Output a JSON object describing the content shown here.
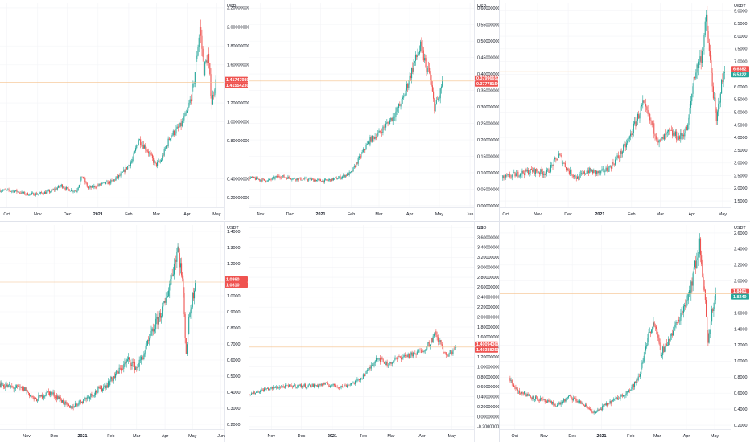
{
  "colors": {
    "up": "#26a69a",
    "down": "#ef5350",
    "price_line": "#f5c08a",
    "grid": "#f3f4f7",
    "axis_text": "#131722",
    "axis_line": "#e0e3eb",
    "badge_red": "#ef5350",
    "badge_green": "#26a69a",
    "badge_text": "#ffffff"
  },
  "chart_data": [
    {
      "type": "candlestick",
      "currency": "USD",
      "x_labels": [
        "Oct",
        "Nov",
        "Dec",
        "2021",
        "Feb",
        "Mar",
        "Apr",
        "May"
      ],
      "x_label_dates": [
        "2020-10-01",
        "2020-11-01",
        "2020-12-01",
        "2021-01-01",
        "2021-02-01",
        "2021-03-01",
        "2021-04-01",
        "2021-05-01"
      ],
      "x_range": [
        "2020-09-24",
        "2021-05-08"
      ],
      "y_ticks": [
        0.2,
        0.4,
        0.8,
        1.0,
        1.2,
        1.6,
        1.8,
        2.0,
        2.2
      ],
      "y_tick_labels": [
        "0.20000000",
        "0.40000000",
        "0.80000000",
        "1.00000000",
        "1.20000000",
        "1.60000000",
        "1.80000000",
        "2.00000000",
        "2.20000000"
      ],
      "ylim": [
        0.1,
        2.25
      ],
      "last_price": 1.4147,
      "last_price_labels": [
        "1.41747989",
        "1.41554230"
      ],
      "series": [
        {
          "date": "2020-09-24",
          "close": 0.28
        },
        {
          "date": "2020-10-10",
          "close": 0.27
        },
        {
          "date": "2020-10-20",
          "close": 0.24
        },
        {
          "date": "2020-11-01",
          "close": 0.24
        },
        {
          "date": "2020-11-15",
          "close": 0.27
        },
        {
          "date": "2020-11-25",
          "close": 0.33
        },
        {
          "date": "2020-12-01",
          "close": 0.29
        },
        {
          "date": "2020-12-10",
          "close": 0.27
        },
        {
          "date": "2020-12-16",
          "close": 0.43
        },
        {
          "date": "2020-12-22",
          "close": 0.3
        },
        {
          "date": "2021-01-01",
          "close": 0.33
        },
        {
          "date": "2021-01-15",
          "close": 0.37
        },
        {
          "date": "2021-01-25",
          "close": 0.45
        },
        {
          "date": "2021-02-05",
          "close": 0.6
        },
        {
          "date": "2021-02-11",
          "close": 0.82
        },
        {
          "date": "2021-02-20",
          "close": 0.7
        },
        {
          "date": "2021-02-28",
          "close": 0.55
        },
        {
          "date": "2021-03-05",
          "close": 0.58
        },
        {
          "date": "2021-03-15",
          "close": 0.85
        },
        {
          "date": "2021-03-25",
          "close": 0.95
        },
        {
          "date": "2021-04-01",
          "close": 1.1
        },
        {
          "date": "2021-04-07",
          "close": 1.35
        },
        {
          "date": "2021-04-14",
          "close": 2.0
        },
        {
          "date": "2021-04-18",
          "close": 1.55
        },
        {
          "date": "2021-04-22",
          "close": 1.7
        },
        {
          "date": "2021-04-26",
          "close": 1.2
        },
        {
          "date": "2021-04-30",
          "close": 1.45
        }
      ]
    },
    {
      "type": "candlestick",
      "currency": "USD",
      "x_labels": [
        "Nov",
        "Dec",
        "2021",
        "Feb",
        "Mar",
        "Apr",
        "May",
        "Jun"
      ],
      "x_label_dates": [
        "2020-11-01",
        "2020-12-01",
        "2021-01-01",
        "2021-02-01",
        "2021-03-01",
        "2021-04-01",
        "2021-05-01",
        "2021-06-01"
      ],
      "x_range": [
        "2020-10-21",
        "2021-06-05"
      ],
      "y_ticks": [
        0.0,
        0.05,
        0.1,
        0.15,
        0.2,
        0.25,
        0.3,
        0.35,
        0.4,
        0.45,
        0.5,
        0.55,
        0.6
      ],
      "y_tick_labels": [
        "0.00000000",
        "0.05000000",
        "0.10000000",
        "0.15000000",
        "0.20000000",
        "0.25000000",
        "0.30000000",
        "0.35000000",
        "0.40000000",
        "0.45000000",
        "0.50000000",
        "0.55000000",
        "0.60000000"
      ],
      "ylim": [
        -0.005,
        0.615
      ],
      "last_price": 0.3787,
      "last_price_labels": [
        "0.37996657",
        "0.37778154"
      ],
      "series": [
        {
          "date": "2020-10-21",
          "close": 0.085
        },
        {
          "date": "2020-10-31",
          "close": 0.08
        },
        {
          "date": "2020-11-08",
          "close": 0.075
        },
        {
          "date": "2020-11-20",
          "close": 0.09
        },
        {
          "date": "2020-12-05",
          "close": 0.082
        },
        {
          "date": "2020-12-20",
          "close": 0.08
        },
        {
          "date": "2021-01-05",
          "close": 0.075
        },
        {
          "date": "2021-01-20",
          "close": 0.085
        },
        {
          "date": "2021-02-01",
          "close": 0.1
        },
        {
          "date": "2021-02-10",
          "close": 0.15
        },
        {
          "date": "2021-02-20",
          "close": 0.2
        },
        {
          "date": "2021-03-01",
          "close": 0.22
        },
        {
          "date": "2021-03-15",
          "close": 0.27
        },
        {
          "date": "2021-03-25",
          "close": 0.32
        },
        {
          "date": "2021-04-05",
          "close": 0.43
        },
        {
          "date": "2021-04-12",
          "close": 0.48
        },
        {
          "date": "2021-04-17",
          "close": 0.43
        },
        {
          "date": "2021-04-21",
          "close": 0.4
        },
        {
          "date": "2021-04-26",
          "close": 0.3
        },
        {
          "date": "2021-05-01",
          "close": 0.33
        },
        {
          "date": "2021-05-04",
          "close": 0.38
        }
      ]
    },
    {
      "type": "candlestick",
      "currency": "USDT",
      "x_labels": [
        "Oct",
        "Nov",
        "Dec",
        "2021",
        "Feb",
        "Mar",
        "Apr",
        "May"
      ],
      "x_label_dates": [
        "2020-10-01",
        "2020-11-01",
        "2020-12-01",
        "2021-01-01",
        "2021-02-01",
        "2021-03-01",
        "2021-04-01",
        "2021-05-01"
      ],
      "x_range": [
        "2020-09-25",
        "2021-05-09"
      ],
      "y_ticks": [
        1.5,
        2.0,
        2.5,
        3.0,
        3.5,
        4.0,
        4.5,
        5.0,
        5.5,
        6.0,
        6.5,
        7.0,
        7.5,
        8.0,
        8.5,
        9.0
      ],
      "y_tick_labels": [
        "1.5000",
        "2.0000",
        "2.5000",
        "3.0000",
        "3.5000",
        "4.0000",
        "4.5000",
        "5.0000",
        "5.5000",
        "6.0000",
        "6.5000",
        "7.0000",
        "7.5000",
        "8.0000",
        "8.5000",
        "9.0000"
      ],
      "ylim": [
        1.25,
        9.3
      ],
      "last_price": 6.6,
      "last_price_labels": [
        "6.6382",
        "6.5322"
      ],
      "series": [
        {
          "date": "2020-09-28",
          "close": 2.4
        },
        {
          "date": "2020-10-15",
          "close": 2.6
        },
        {
          "date": "2020-10-28",
          "close": 2.7
        },
        {
          "date": "2020-11-10",
          "close": 2.6
        },
        {
          "date": "2020-11-22",
          "close": 3.3
        },
        {
          "date": "2020-12-01",
          "close": 2.7
        },
        {
          "date": "2020-12-10",
          "close": 2.4
        },
        {
          "date": "2020-12-20",
          "close": 2.7
        },
        {
          "date": "2021-01-01",
          "close": 2.6
        },
        {
          "date": "2021-01-10",
          "close": 2.8
        },
        {
          "date": "2021-01-20",
          "close": 3.3
        },
        {
          "date": "2021-01-28",
          "close": 3.8
        },
        {
          "date": "2021-02-05",
          "close": 4.6
        },
        {
          "date": "2021-02-12",
          "close": 5.3
        },
        {
          "date": "2021-02-20",
          "close": 4.6
        },
        {
          "date": "2021-02-28",
          "close": 3.8
        },
        {
          "date": "2021-03-10",
          "close": 4.2
        },
        {
          "date": "2021-03-20",
          "close": 4.0
        },
        {
          "date": "2021-03-28",
          "close": 4.4
        },
        {
          "date": "2021-04-03",
          "close": 6.4
        },
        {
          "date": "2021-04-10",
          "close": 7.2
        },
        {
          "date": "2021-04-15",
          "close": 8.6
        },
        {
          "date": "2021-04-20",
          "close": 6.5
        },
        {
          "date": "2021-04-25",
          "close": 4.6
        },
        {
          "date": "2021-04-29",
          "close": 5.9
        },
        {
          "date": "2021-05-03",
          "close": 6.6
        }
      ]
    },
    {
      "type": "candlestick",
      "currency": "USDT",
      "x_labels": [
        "Nov",
        "Dec",
        "2021",
        "Feb",
        "Mar",
        "Apr",
        "May",
        "Jun"
      ],
      "x_label_dates": [
        "2020-11-01",
        "2020-12-01",
        "2021-01-01",
        "2021-02-01",
        "2021-03-01",
        "2021-04-01",
        "2021-05-01",
        "2021-06-01"
      ],
      "x_range": [
        "2020-10-03",
        "2021-06-04"
      ],
      "y_ticks": [
        0.2,
        0.3,
        0.4,
        0.5,
        0.6,
        0.7,
        0.8,
        0.9,
        1.0,
        1.2,
        1.3,
        1.4
      ],
      "y_tick_labels": [
        "0.2000",
        "0.3000",
        "0.4000",
        "0.5000",
        "0.6000",
        "0.7000",
        "0.8000",
        "0.9000",
        "1.0000",
        "1.2000",
        "1.3000",
        "1.4000"
      ],
      "ylim": [
        0.17,
        1.44
      ],
      "last_price": 1.085,
      "last_price_labels": [
        "1.0860",
        "1.0810"
      ],
      "series": [
        {
          "date": "2020-10-03",
          "close": 0.45
        },
        {
          "date": "2020-10-15",
          "close": 0.43
        },
        {
          "date": "2020-10-30",
          "close": 0.42
        },
        {
          "date": "2020-11-10",
          "close": 0.35
        },
        {
          "date": "2020-11-25",
          "close": 0.4
        },
        {
          "date": "2020-12-05",
          "close": 0.37
        },
        {
          "date": "2020-12-18",
          "close": 0.3
        },
        {
          "date": "2021-01-01",
          "close": 0.35
        },
        {
          "date": "2021-01-15",
          "close": 0.4
        },
        {
          "date": "2021-01-28",
          "close": 0.45
        },
        {
          "date": "2021-02-05",
          "close": 0.5
        },
        {
          "date": "2021-02-20",
          "close": 0.6
        },
        {
          "date": "2021-03-01",
          "close": 0.55
        },
        {
          "date": "2021-03-10",
          "close": 0.65
        },
        {
          "date": "2021-03-20",
          "close": 0.8
        },
        {
          "date": "2021-04-01",
          "close": 0.95
        },
        {
          "date": "2021-04-15",
          "close": 1.3
        },
        {
          "date": "2021-04-20",
          "close": 1.1
        },
        {
          "date": "2021-04-24",
          "close": 0.65
        },
        {
          "date": "2021-04-28",
          "close": 0.9
        },
        {
          "date": "2021-05-04",
          "close": 1.08
        }
      ]
    },
    {
      "type": "candlestick",
      "currency": "USD",
      "x_labels": [
        "Nov",
        "Dec",
        "2021",
        "Feb",
        "Mar",
        "Apr",
        "May"
      ],
      "x_label_dates": [
        "2020-11-01",
        "2020-12-01",
        "2021-01-01",
        "2021-02-01",
        "2021-03-01",
        "2021-04-01",
        "2021-05-01"
      ],
      "x_range": [
        "2020-10-10",
        "2021-05-23"
      ],
      "y_ticks": [
        -0.2,
        0.0,
        0.2,
        0.4,
        0.6,
        0.8,
        1.0,
        1.2,
        1.4,
        1.6,
        1.8,
        2.0,
        2.2,
        2.4,
        2.6,
        2.8,
        3.0,
        3.2,
        3.4,
        3.6,
        3.8
      ],
      "y_tick_labels": [
        "-0.20000000",
        "0.00000000",
        "0.20000000",
        "0.40000000",
        "0.60000000",
        "0.80000000",
        "1.00000000",
        "1.20000000",
        "1.40000000",
        "1.60000000",
        "1.80000000",
        "2.00000000",
        "2.20000000",
        "2.40000000",
        "2.60000000",
        "2.80000000",
        "3.00000000",
        "3.20000000",
        "3.40000000",
        "3.60000000",
        "3.8"
      ],
      "ylim": [
        -0.25,
        3.85
      ],
      "last_price": 1.4,
      "last_price_labels": [
        "1.40094360",
        "1.40388250"
      ],
      "series": [
        {
          "date": "2020-10-10",
          "close": 0.45
        },
        {
          "date": "2020-10-25",
          "close": 0.55
        },
        {
          "date": "2020-11-10",
          "close": 0.6
        },
        {
          "date": "2020-11-25",
          "close": 0.62
        },
        {
          "date": "2020-12-10",
          "close": 0.62
        },
        {
          "date": "2020-12-25",
          "close": 0.65
        },
        {
          "date": "2021-01-10",
          "close": 0.6
        },
        {
          "date": "2021-01-25",
          "close": 0.7
        },
        {
          "date": "2021-02-05",
          "close": 0.9
        },
        {
          "date": "2021-02-15",
          "close": 1.2
        },
        {
          "date": "2021-02-25",
          "close": 1.05
        },
        {
          "date": "2021-03-10",
          "close": 1.2
        },
        {
          "date": "2021-03-25",
          "close": 1.25
        },
        {
          "date": "2021-04-05",
          "close": 1.4
        },
        {
          "date": "2021-04-14",
          "close": 1.65
        },
        {
          "date": "2021-04-20",
          "close": 1.45
        },
        {
          "date": "2021-04-25",
          "close": 1.2
        },
        {
          "date": "2021-04-30",
          "close": 1.3
        },
        {
          "date": "2021-05-05",
          "close": 1.4
        }
      ]
    },
    {
      "type": "candlestick",
      "currency": "USDT",
      "x_labels": [
        "Oct",
        "Nov",
        "Dec",
        "2021",
        "Feb",
        "Mar",
        "Apr",
        "May"
      ],
      "x_label_dates": [
        "2020-10-01",
        "2020-11-01",
        "2020-12-01",
        "2021-01-01",
        "2021-02-01",
        "2021-03-01",
        "2021-04-01",
        "2021-05-01"
      ],
      "x_range": [
        "2020-09-15",
        "2021-05-18"
      ],
      "y_ticks": [
        0.2,
        0.4,
        0.6,
        0.8,
        1.0,
        1.2,
        1.4,
        1.6,
        1.8,
        2.0,
        2.2,
        2.4,
        2.6
      ],
      "y_tick_labels": [
        "0.2000",
        "0.4000",
        "0.6000",
        "0.8000",
        "1.0000",
        "1.2000",
        "1.4000",
        "1.6000",
        "1.8000",
        "2.0000",
        "2.2000",
        "2.4000",
        "2.6000"
      ],
      "ylim": [
        0.15,
        2.7
      ],
      "last_price": 1.84,
      "last_price_labels": [
        "1.8461",
        "1.8249"
      ],
      "series": [
        {
          "date": "2020-09-25",
          "close": 0.78
        },
        {
          "date": "2020-10-05",
          "close": 0.62
        },
        {
          "date": "2020-10-20",
          "close": 0.55
        },
        {
          "date": "2020-11-01",
          "close": 0.5
        },
        {
          "date": "2020-11-15",
          "close": 0.45
        },
        {
          "date": "2020-11-28",
          "close": 0.55
        },
        {
          "date": "2020-12-10",
          "close": 0.48
        },
        {
          "date": "2020-12-25",
          "close": 0.35
        },
        {
          "date": "2021-01-05",
          "close": 0.45
        },
        {
          "date": "2021-01-20",
          "close": 0.55
        },
        {
          "date": "2021-02-01",
          "close": 0.65
        },
        {
          "date": "2021-02-10",
          "close": 0.8
        },
        {
          "date": "2021-02-18",
          "close": 1.25
        },
        {
          "date": "2021-02-25",
          "close": 1.5
        },
        {
          "date": "2021-03-05",
          "close": 1.1
        },
        {
          "date": "2021-03-15",
          "close": 1.3
        },
        {
          "date": "2021-03-25",
          "close": 1.55
        },
        {
          "date": "2021-04-05",
          "close": 1.9
        },
        {
          "date": "2021-04-15",
          "close": 2.45
        },
        {
          "date": "2021-04-20",
          "close": 1.9
        },
        {
          "date": "2021-04-24",
          "close": 1.2
        },
        {
          "date": "2021-04-28",
          "close": 1.6
        },
        {
          "date": "2021-05-02",
          "close": 1.84
        }
      ]
    }
  ]
}
